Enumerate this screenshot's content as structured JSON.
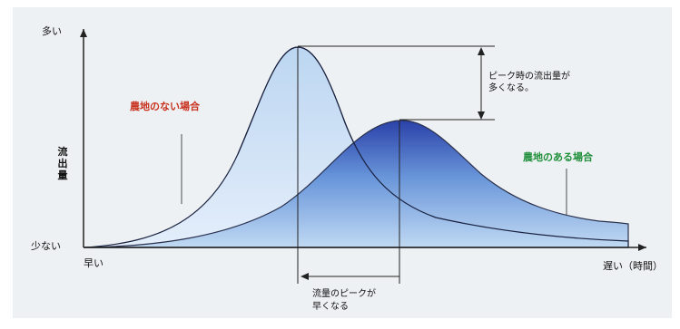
{
  "axes": {
    "y_top": "多い",
    "y_bottom": "少ない",
    "y_title": [
      "流",
      "出",
      "量"
    ],
    "x_left": "早い",
    "x_right": "遅い（時間）"
  },
  "labels": {
    "no_farmland": "農地のない場合",
    "with_farmland": "農地のある場合",
    "peak_flow_line1": "ピーク時の流出量が",
    "peak_flow_line2": "多くなる。",
    "peak_time_line1": "流量のピークが",
    "peak_time_line2": "早くなる"
  },
  "colors": {
    "background": "#eef1f3",
    "no_farmland_label": "#c8321e",
    "with_farmland_label": "#1f8f3a",
    "curve_light": "#c5dcf2",
    "curve_dark": "#1f3aa8",
    "axis": "#222222"
  }
}
